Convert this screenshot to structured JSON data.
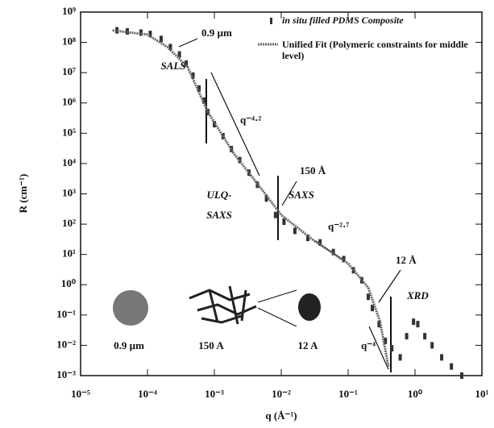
{
  "chart_data": {
    "type": "scatter",
    "log_x": true,
    "log_y": true,
    "xlabel": "q (Å⁻¹)",
    "ylabel": "R (cm⁻¹)",
    "xlim": [
      1e-05,
      10
    ],
    "ylim": [
      0.001,
      1000000000
    ],
    "xticks": [
      {
        "value": 1e-05,
        "label": "10⁻⁵"
      },
      {
        "value": 0.0001,
        "label": "10⁻⁴"
      },
      {
        "value": 0.001,
        "label": "10⁻³"
      },
      {
        "value": 0.01,
        "label": "10⁻²"
      },
      {
        "value": 0.1,
        "label": "10⁻¹"
      },
      {
        "value": 1,
        "label": "10⁰"
      },
      {
        "value": 10,
        "label": "10¹"
      }
    ],
    "yticks": [
      {
        "value": 1000000000,
        "label": "10⁹"
      },
      {
        "value": 100000000,
        "label": "10⁸"
      },
      {
        "value": 10000000,
        "label": "10⁷"
      },
      {
        "value": 1000000,
        "label": "10⁶"
      },
      {
        "value": 100000,
        "label": "10⁵"
      },
      {
        "value": 10000,
        "label": "10⁴"
      },
      {
        "value": 1000,
        "label": "10³"
      },
      {
        "value": 100,
        "label": "10²"
      },
      {
        "value": 10,
        "label": "10¹"
      },
      {
        "value": 1,
        "label": "10⁰"
      },
      {
        "value": 0.1,
        "label": "10⁻¹"
      },
      {
        "value": 0.01,
        "label": "10⁻²"
      },
      {
        "value": 0.001,
        "label": "10⁻³"
      }
    ],
    "series": [
      {
        "name": "in situ filled PDMS Composite",
        "color": "#333333",
        "x": [
          3.5e-05,
          5e-05,
          8e-05,
          0.00011,
          0.00016,
          0.00022,
          0.0003,
          0.00038,
          0.00048,
          0.00059,
          0.0007,
          0.0008,
          0.001,
          0.00135,
          0.0018,
          0.0024,
          0.0033,
          0.0044,
          0.006,
          0.0082,
          0.011,
          0.016,
          0.025,
          0.038,
          0.06,
          0.086,
          0.12,
          0.16,
          0.2,
          0.23,
          0.29,
          0.36,
          0.45,
          0.6,
          0.75,
          0.95,
          1.1,
          1.4,
          1.8,
          2.5,
          3.5,
          5
        ],
        "values": [
          250000000,
          230000000,
          210000000,
          190000000,
          130000000,
          70000000,
          40000000,
          20000000,
          8000000,
          3000000,
          1200000,
          500000,
          200000,
          80000,
          30000,
          13000,
          5000,
          2000,
          700,
          200,
          120,
          60,
          35,
          25,
          12,
          7,
          3,
          1.4,
          0.4,
          0.17,
          0.05,
          0.014,
          0.008,
          0.004,
          0.02,
          0.06,
          0.05,
          0.02,
          0.01,
          0.004,
          0.002,
          0.001
        ]
      },
      {
        "name": "Unified Fit (Polymeric constraints for middle level)",
        "color": "#666666",
        "x": [
          3e-05,
          0.0001,
          0.0002,
          0.0004,
          0.0008,
          0.002,
          0.005,
          0.01,
          0.03,
          0.1,
          0.2,
          0.3,
          0.4
        ],
        "values": [
          250000000,
          180000000,
          70000000,
          15000000,
          500000,
          20000,
          1500,
          200,
          30,
          5,
          0.8,
          0.06,
          0.002
        ]
      }
    ],
    "annotations": [
      "0.9 µm",
      "SALS",
      "q⁻⁴·²",
      "150 Å",
      "ULQ-",
      "SAXS",
      "SAXS",
      "q⁻²·⁷",
      "12 Å",
      "XRD",
      "q⁻⁴",
      "0.9 µm",
      "150 A",
      "12 A"
    ]
  }
}
